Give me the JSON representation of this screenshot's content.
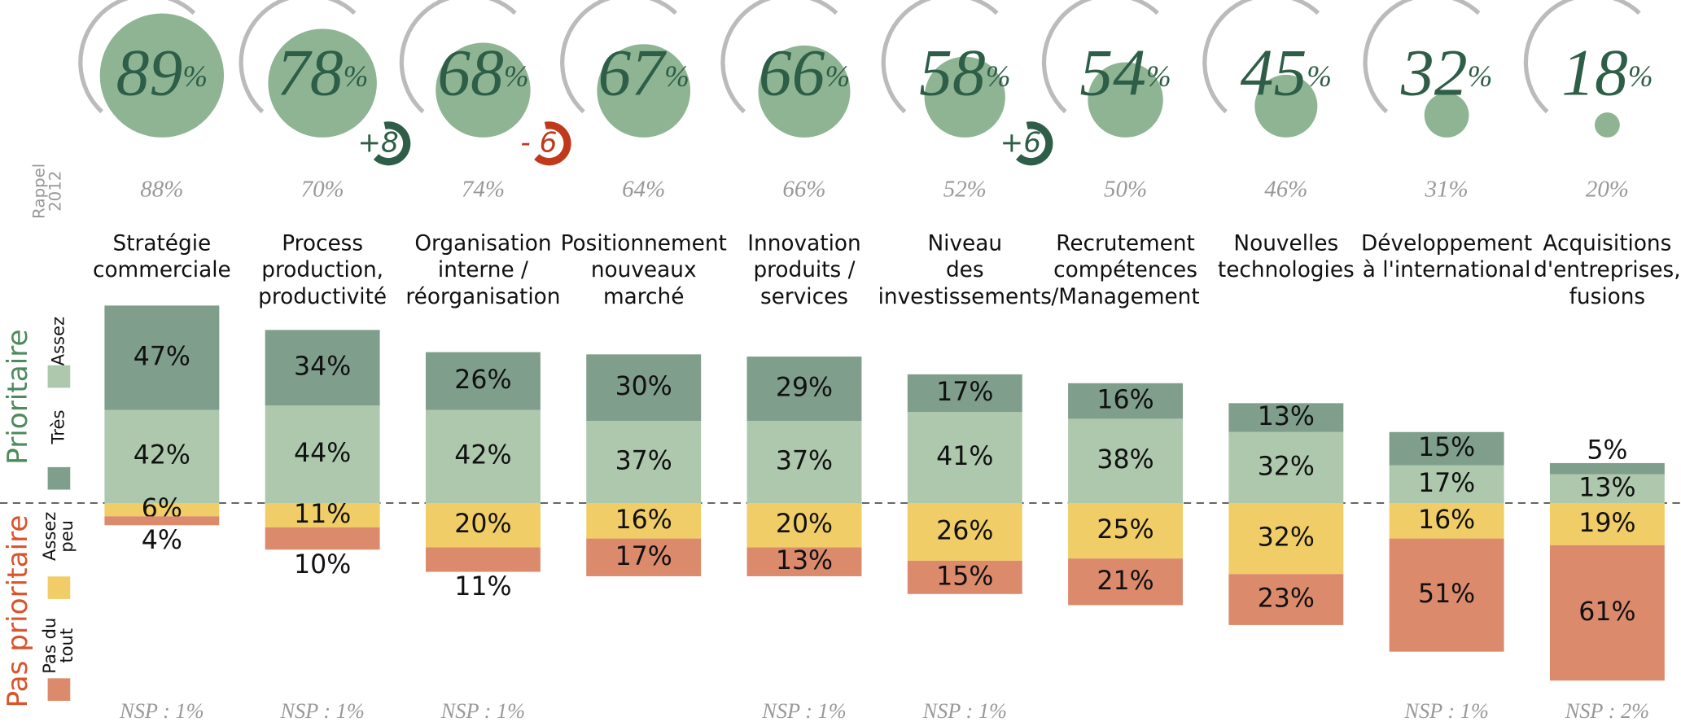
{
  "chart_data": {
    "type": "bar",
    "categories": [
      "Stratégie\ncommerciale",
      "Process\nproduction,\nproductivité",
      "Organisation\ninterne /\nréorganisation",
      "Positionnement\nnouveaux\nmarché",
      "Innovation\nproduits /\nservices",
      "Niveau\ndes\ninvestissements",
      "Recrutement\ncompétences\n/Management",
      "Nouvelles\ntechnologies",
      "Développement\nà l'international",
      "Acquisitions\nd'entreprises,\nfusions"
    ],
    "bubble": {
      "color": "#8fb494",
      "values": [
        89,
        78,
        68,
        67,
        66,
        58,
        54,
        45,
        32,
        18
      ],
      "value_labels": [
        "89%",
        "78%",
        "68%",
        "67%",
        "66%",
        "58%",
        "54%",
        "45%",
        "32%",
        "18%"
      ]
    },
    "changes": {
      "values": [
        null,
        8,
        -6,
        null,
        null,
        6,
        null,
        null,
        null,
        null
      ],
      "value_labels": [
        null,
        "+8",
        "- 6",
        null,
        null,
        "+6",
        null,
        null,
        null,
        null
      ]
    },
    "recall": {
      "label": "Rappel\n2012",
      "values": [
        88,
        70,
        74,
        64,
        66,
        52,
        50,
        46,
        31,
        20
      ],
      "value_labels": [
        "88%",
        "70%",
        "74%",
        "64%",
        "66%",
        "52%",
        "50%",
        "46%",
        "31%",
        "20%"
      ]
    },
    "groups": [
      {
        "name": "Prioritaire",
        "color": "#4d8a5c",
        "series": [
          {
            "name": "Assez",
            "color": "#adc8ad",
            "values": [
              42,
              44,
              42,
              37,
              37,
              41,
              38,
              32,
              17,
              13
            ],
            "value_labels": [
              "42%",
              "44%",
              "42%",
              "37%",
              "37%",
              "41%",
              "38%",
              "32%",
              "17%",
              "13%"
            ]
          },
          {
            "name": "Très",
            "color": "#7f9e8c",
            "values": [
              47,
              34,
              26,
              30,
              29,
              17,
              16,
              13,
              15,
              5
            ],
            "value_labels": [
              "47%",
              "34%",
              "26%",
              "30%",
              "29%",
              "17%",
              "16%",
              "13%",
              "15%",
              "5%"
            ]
          }
        ]
      },
      {
        "name": "Pas prioritaire",
        "color": "#d9532c",
        "series": [
          {
            "name": "Assez\npeu",
            "color": "#f0cd66",
            "values": [
              6,
              11,
              20,
              16,
              20,
              26,
              25,
              32,
              16,
              19
            ],
            "value_labels": [
              "6%",
              "11%",
              "20%",
              "16%",
              "20%",
              "26%",
              "25%",
              "32%",
              "16%",
              "19%"
            ]
          },
          {
            "name": "Pas du\ntout",
            "color": "#dc8a6c",
            "values": [
              4,
              10,
              11,
              17,
              13,
              15,
              21,
              23,
              51,
              61
            ],
            "value_labels": [
              "4%",
              "10%",
              "11%",
              "17%",
              "13%",
              "15%",
              "21%",
              "23%",
              "51%",
              "61%"
            ]
          }
        ]
      }
    ],
    "nsp": [
      "NSP : 1%",
      "NSP : 1%",
      "NSP : 1%",
      null,
      "NSP : 1%",
      "NSP : 1%",
      null,
      null,
      "NSP : 1%",
      "NSP : 2%"
    ]
  }
}
